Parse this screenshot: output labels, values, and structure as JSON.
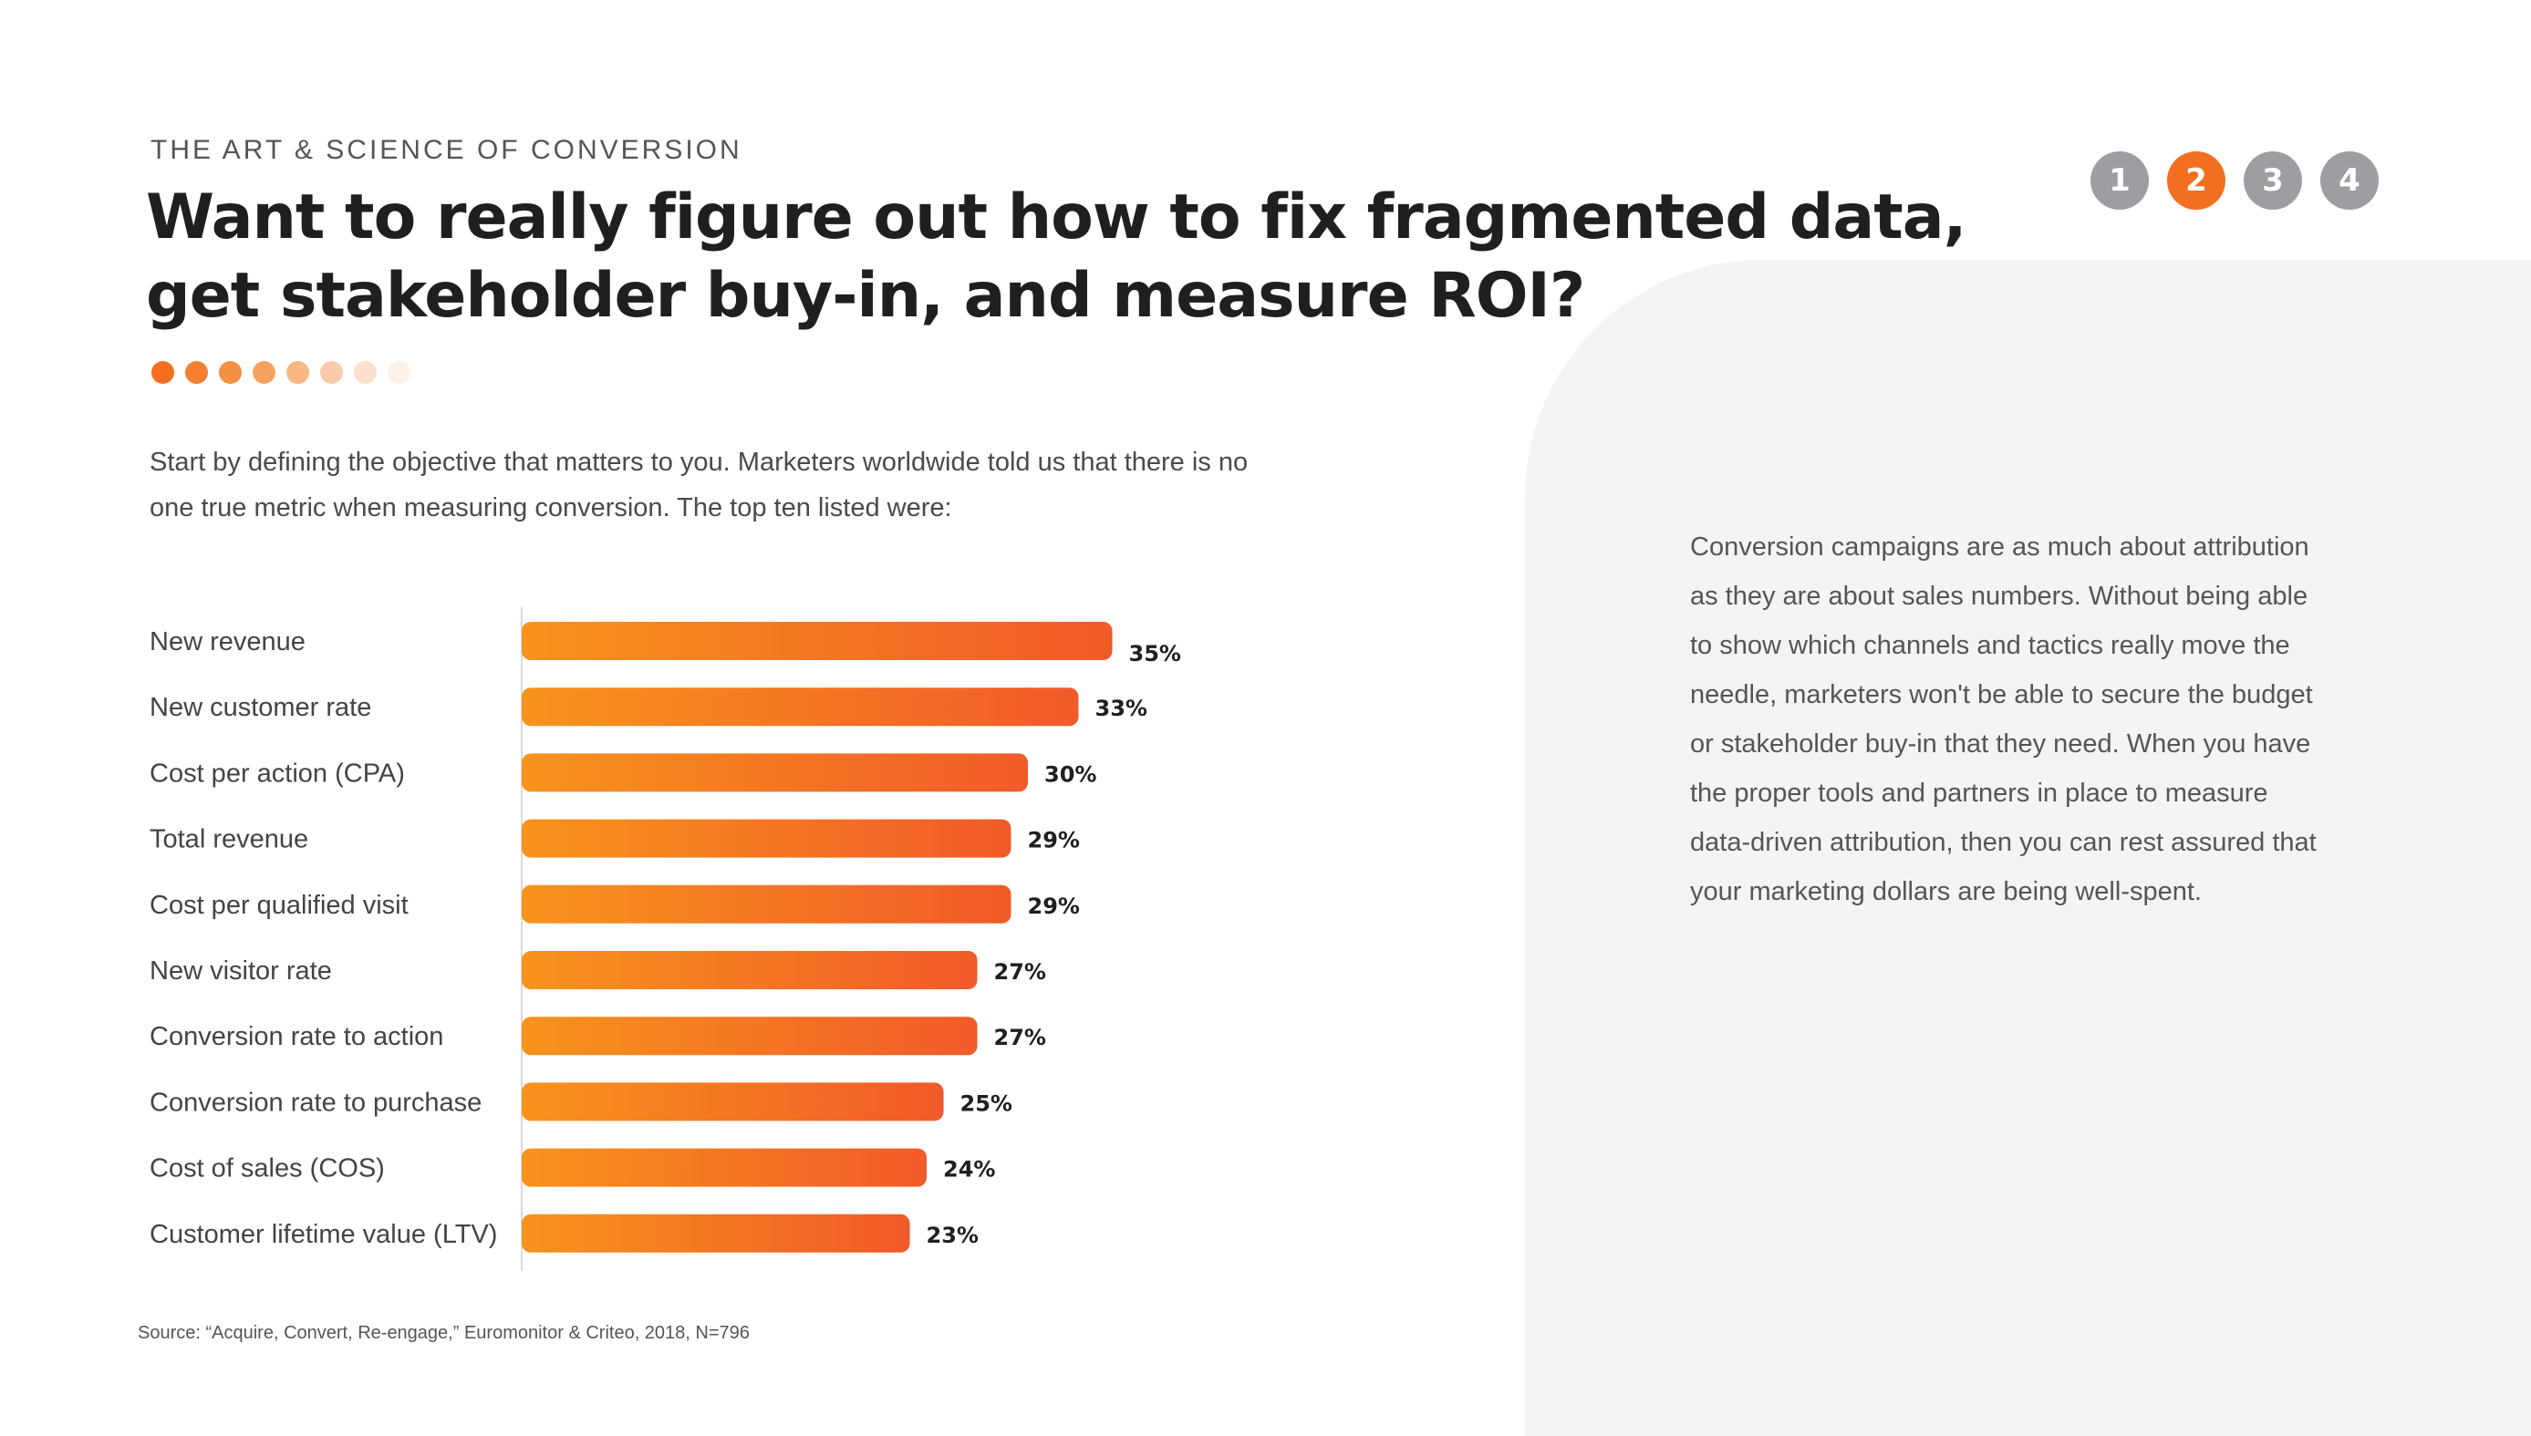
{
  "header": {
    "kicker": "THE ART & SCIENCE OF CONVERSION",
    "title_line1": "Want to really figure out how to fix fragmented data,",
    "title_line2": "get stakeholder buy-in, and measure ROI?"
  },
  "pager": {
    "pages": [
      "1",
      "2",
      "3",
      "4"
    ],
    "active": "2"
  },
  "colors": {
    "accent": "#f26f21",
    "bar_start": "#f7941d",
    "bar_end": "#f15a29",
    "pager_inactive": "#9d9ea1",
    "panel": "#f4f4f4",
    "dots": [
      "#f26f21",
      "#f37f30",
      "#f48f43",
      "#f6a35f",
      "#f8b784",
      "#facbaa",
      "#fcdfcc",
      "#fef1e8"
    ]
  },
  "intro": {
    "line1": "Start by defining the objective that matters to you. Marketers worldwide told us that there is no",
    "line2": "one true metric when measuring conversion. The top ten listed were:"
  },
  "side_text": {
    "lines": [
      "Conversion campaigns are as much about attribution",
      "as they are about sales numbers. Without being able",
      "to show which channels and tactics really move the",
      "needle, marketers won't be able to secure the budget",
      "or stakeholder buy-in that they need. When you have",
      "the proper tools and partners in place to measure",
      "data-driven attribution, then you can rest assured that",
      "your marketing dollars are being well-spent."
    ]
  },
  "chart_data": {
    "type": "bar",
    "orientation": "horizontal",
    "categories": [
      "New revenue",
      "New customer rate",
      "Cost per action (CPA)",
      "Total revenue",
      "Cost per qualified visit",
      "New visitor rate",
      "Conversion rate to action",
      "Conversion rate to purchase",
      "Cost of sales (COS)",
      "Customer lifetime value (LTV)"
    ],
    "values": [
      35,
      33,
      30,
      29,
      29,
      27,
      27,
      25,
      24,
      23
    ],
    "value_labels": [
      "35%",
      "33%",
      "30%",
      "29%",
      "29%",
      "27%",
      "27%",
      "25%",
      "24%",
      "23%"
    ],
    "title": "",
    "xlabel": "",
    "ylabel": "",
    "grid": false
  },
  "source": "Source: “Acquire, Convert, Re-engage,” Euromonitor & Criteo, 2018, N=796"
}
